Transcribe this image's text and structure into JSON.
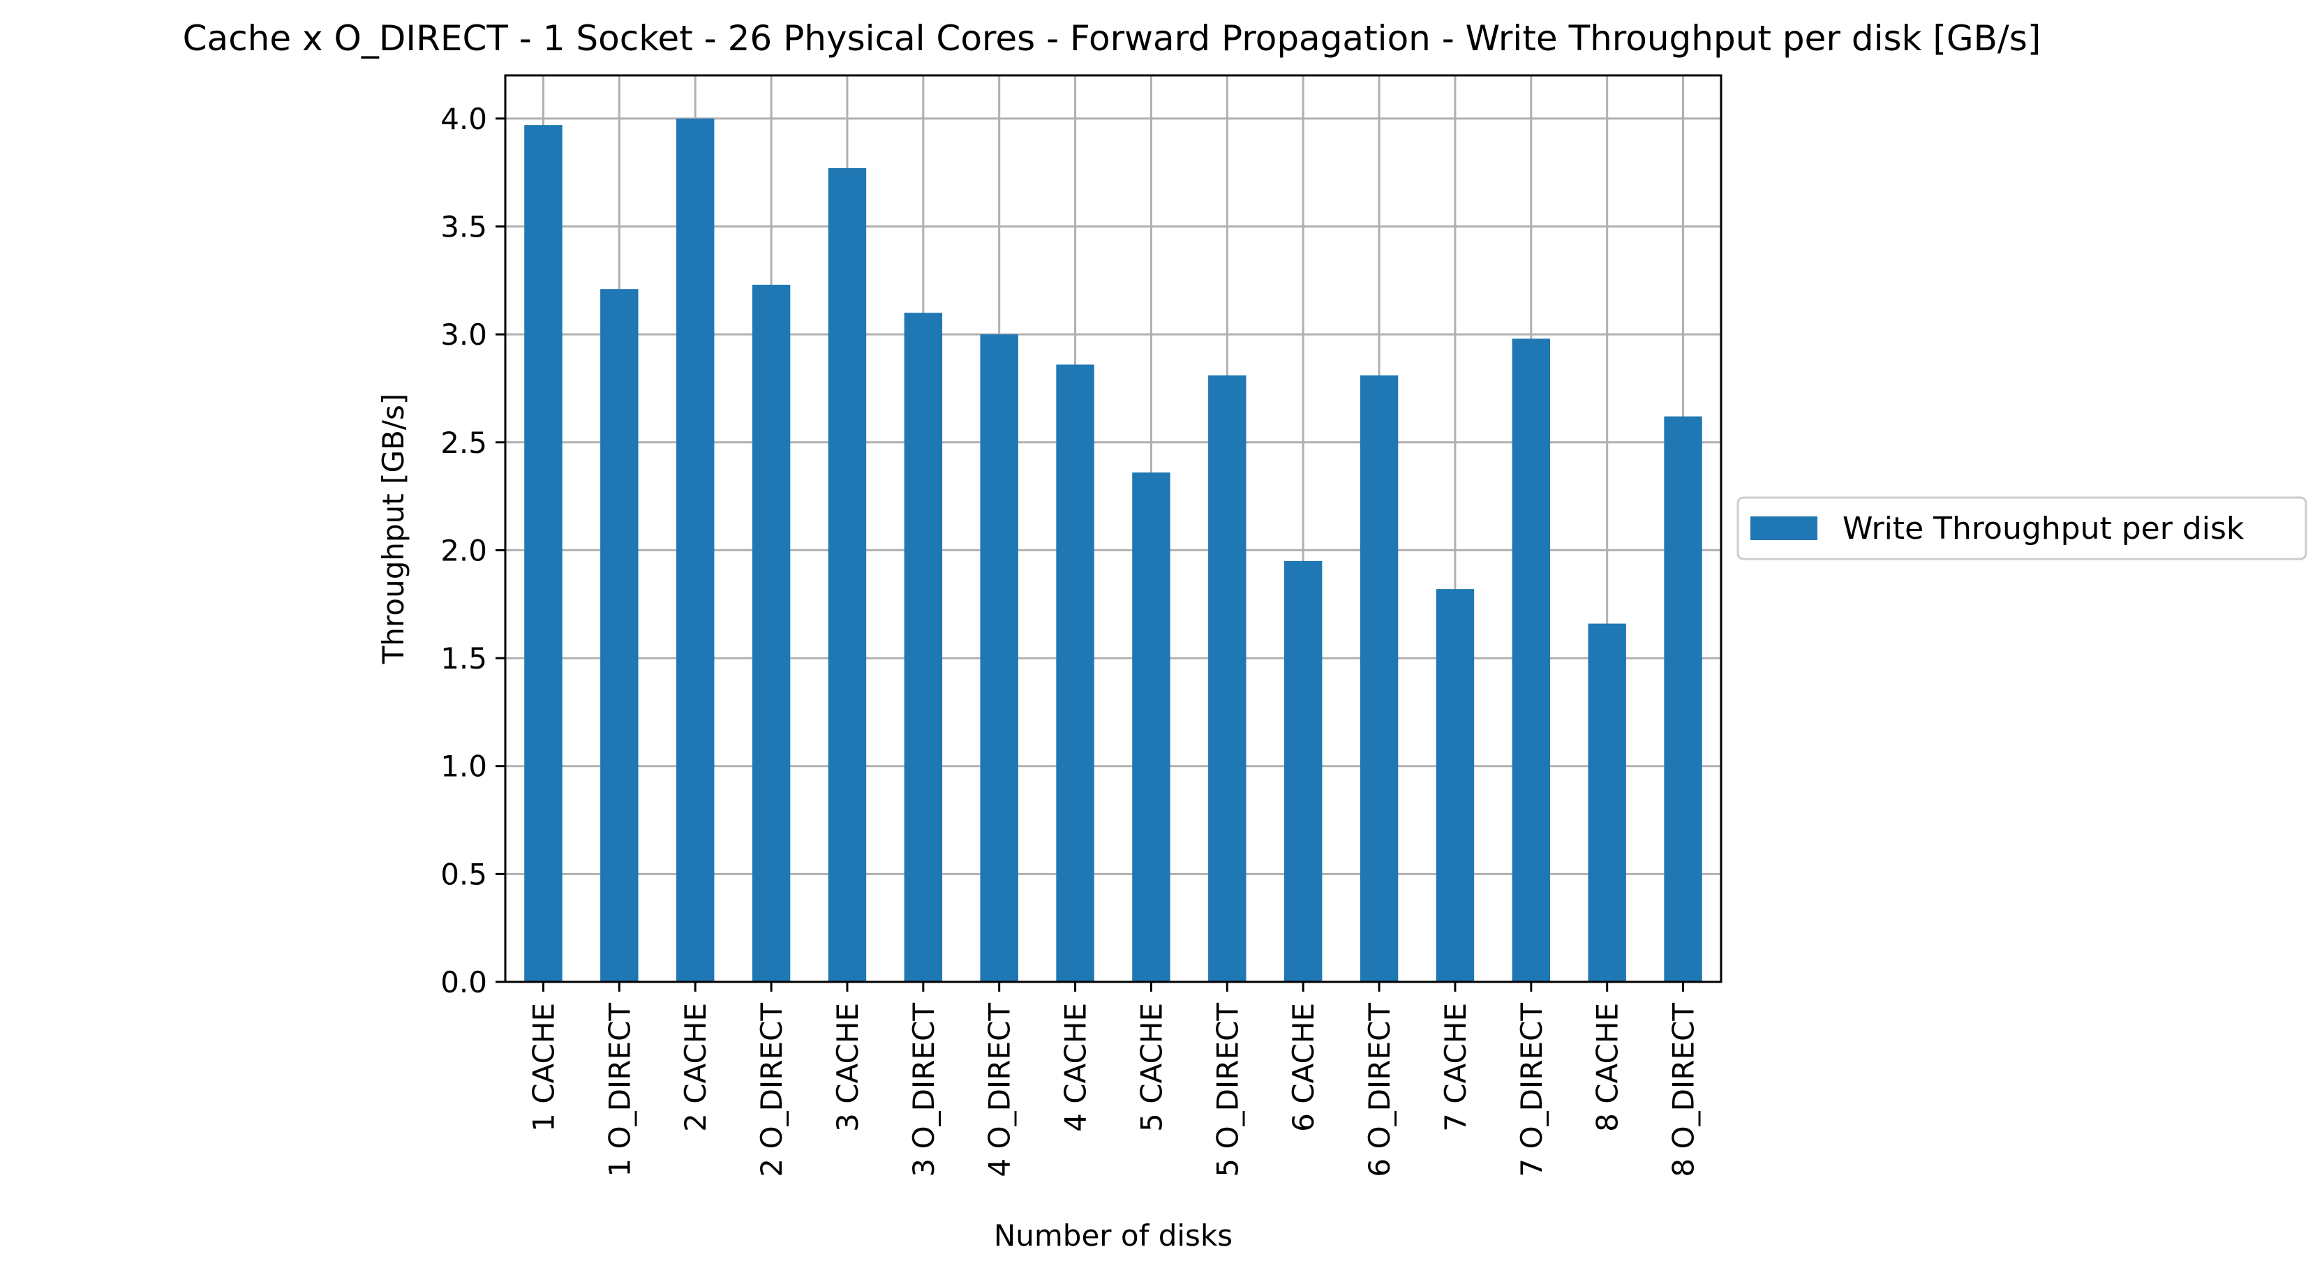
{
  "chart_data": {
    "type": "bar",
    "title": "Cache x O_DIRECT - 1 Socket - 26 Physical Cores - Forward Propagation - Write Throughput per disk [GB/s]",
    "xlabel": "Number of disks",
    "ylabel": "Throughput [GB/s]",
    "ylim": [
      0,
      4.2
    ],
    "yticks": [
      0.0,
      0.5,
      1.0,
      1.5,
      2.0,
      2.5,
      3.0,
      3.5,
      4.0
    ],
    "ytick_labels": [
      "0.0",
      "0.5",
      "1.0",
      "1.5",
      "2.0",
      "2.5",
      "3.0",
      "3.5",
      "4.0"
    ],
    "grid": true,
    "legend_position": "right, outside plot",
    "categories": [
      "1 CACHE",
      "1 O_DIRECT",
      "2 CACHE",
      "2 O_DIRECT",
      "3 CACHE",
      "3 O_DIRECT",
      "4 O_DIRECT",
      "4 CACHE",
      "5 CACHE",
      "5 O_DIRECT",
      "6 CACHE",
      "6 O_DIRECT",
      "7 CACHE",
      "7 O_DIRECT",
      "8 CACHE",
      "8 O_DIRECT"
    ],
    "series": [
      {
        "name": "Write Throughput per disk",
        "color": "#1f77b4",
        "values": [
          3.97,
          3.21,
          4.0,
          3.23,
          3.77,
          3.1,
          3.0,
          2.86,
          2.36,
          2.81,
          1.95,
          2.81,
          1.82,
          2.98,
          1.66,
          2.62
        ]
      }
    ],
    "colors": {
      "bar": "#1f77b4",
      "grid": "#b0b0b0",
      "axis": "#000000",
      "legend_border": "#cccccc"
    }
  }
}
